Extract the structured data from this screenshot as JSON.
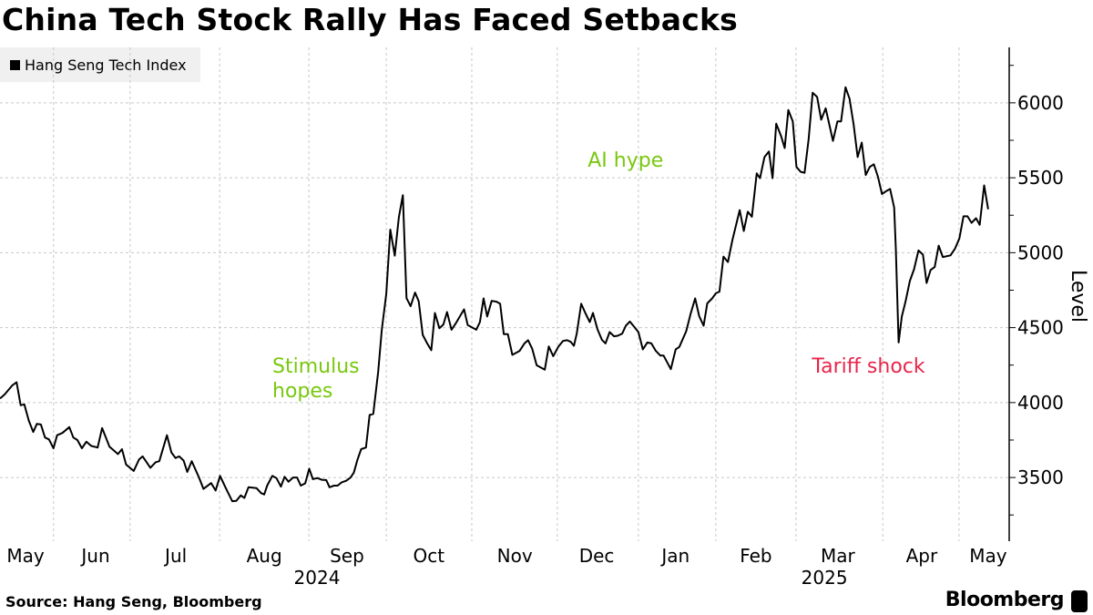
{
  "title": "China Tech Stock Rally Has Faced Setbacks",
  "source": "Source: Hang Seng, Bloomberg",
  "brand": "Bloomberg",
  "chart_data": {
    "type": "line",
    "title": "China Tech Stock Rally Has Faced Setbacks",
    "xlabel": "",
    "ylabel": "Level",
    "x_units": "trading days since start (May 2024)",
    "xlim": [
      0,
      249
    ],
    "ylim": [
      3075,
      6370
    ],
    "yticks": [
      3500,
      4000,
      4500,
      5000,
      5500,
      6000
    ],
    "ytick_labels": [
      "3500",
      "4000",
      "4500",
      "5000",
      "5500",
      "6000"
    ],
    "grid": true,
    "legend": {
      "placement": "top-left",
      "entries": [
        "Hang Seng Tech Index"
      ]
    },
    "month_boundaries": [
      13.2,
      32.1,
      54.2,
      76.2,
      95.3,
      116.4,
      137.5,
      157.5,
      176.6,
      196.4,
      217.8,
      236.6
    ],
    "month_labels": [
      {
        "label": "May",
        "at": 6.3
      },
      {
        "label": "Jun",
        "at": 23.6
      },
      {
        "label": "Jul",
        "at": 43.4
      },
      {
        "label": "Aug",
        "at": 65.2
      },
      {
        "label": "Sep",
        "at": 85.6
      },
      {
        "label": "Oct",
        "at": 105.8
      },
      {
        "label": "Nov",
        "at": 127.0
      },
      {
        "label": "Dec",
        "at": 147.2
      },
      {
        "label": "Jan",
        "at": 166.7
      },
      {
        "label": "Feb",
        "at": 186.5
      },
      {
        "label": "Mar",
        "at": 206.7
      },
      {
        "label": "Apr",
        "at": 227.4
      },
      {
        "label": "May",
        "at": 243.8
      }
    ],
    "year_labels": [
      {
        "label": "2024",
        "at": 78.2
      },
      {
        "label": "2025",
        "at": 203.4
      }
    ],
    "annotations": [
      {
        "text": [
          "Stimulus",
          "hopes"
        ],
        "color": "#79c80f",
        "x": 67.2,
        "y": 4150
      },
      {
        "text": [
          "AI hype"
        ],
        "color": "#79c80f",
        "x": 145,
        "y": 5525
      },
      {
        "text": [
          "Tariff shock"
        ],
        "color": "#e8254b",
        "x": 200.3,
        "y": 4150
      }
    ],
    "series": [
      {
        "name": "Hang Seng Tech Index",
        "color": "#000000",
        "points": [
          [
            0,
            4027
          ],
          [
            1.1,
            4053
          ],
          [
            3,
            4114
          ],
          [
            4.1,
            4136
          ],
          [
            5.1,
            3982
          ],
          [
            6,
            3988
          ],
          [
            7.1,
            3880
          ],
          [
            8.2,
            3804
          ],
          [
            9.1,
            3858
          ],
          [
            10.1,
            3854
          ],
          [
            11.1,
            3767
          ],
          [
            12.1,
            3754
          ],
          [
            13.2,
            3695
          ],
          [
            14.1,
            3782
          ],
          [
            15.4,
            3797
          ],
          [
            17.1,
            3836
          ],
          [
            18.1,
            3767
          ],
          [
            19.1,
            3750
          ],
          [
            20.2,
            3695
          ],
          [
            21.3,
            3739
          ],
          [
            22.5,
            3711
          ],
          [
            24.1,
            3700
          ],
          [
            25.2,
            3830
          ],
          [
            27,
            3706
          ],
          [
            29.1,
            3656
          ],
          [
            30.1,
            3689
          ],
          [
            31.1,
            3587
          ],
          [
            33,
            3544
          ],
          [
            34.3,
            3620
          ],
          [
            35.2,
            3641
          ],
          [
            37.1,
            3565
          ],
          [
            38.4,
            3602
          ],
          [
            39.3,
            3609
          ],
          [
            41.2,
            3782
          ],
          [
            42.3,
            3667
          ],
          [
            43.3,
            3630
          ],
          [
            44.2,
            3641
          ],
          [
            45.3,
            3613
          ],
          [
            46.2,
            3537
          ],
          [
            47.3,
            3609
          ],
          [
            49.1,
            3500
          ],
          [
            50.2,
            3424
          ],
          [
            52.1,
            3463
          ],
          [
            53.2,
            3413
          ],
          [
            54.3,
            3511
          ],
          [
            55.8,
            3424
          ],
          [
            57.3,
            3342
          ],
          [
            58.3,
            3344
          ],
          [
            59.4,
            3381
          ],
          [
            60.3,
            3364
          ],
          [
            61.3,
            3435
          ],
          [
            63.3,
            3429
          ],
          [
            64.4,
            3396
          ],
          [
            65.2,
            3387
          ],
          [
            65.9,
            3446
          ],
          [
            67.2,
            3511
          ],
          [
            68.2,
            3496
          ],
          [
            69.3,
            3439
          ],
          [
            70.2,
            3505
          ],
          [
            71.2,
            3472
          ],
          [
            72.3,
            3500
          ],
          [
            73.3,
            3500
          ],
          [
            74.2,
            3446
          ],
          [
            75.3,
            3461
          ],
          [
            76.3,
            3559
          ],
          [
            77.2,
            3489
          ],
          [
            78.3,
            3496
          ],
          [
            79.4,
            3485
          ],
          [
            80.5,
            3483
          ],
          [
            81.3,
            3435
          ],
          [
            82.4,
            3446
          ],
          [
            83.3,
            3446
          ],
          [
            84.3,
            3468
          ],
          [
            85.4,
            3478
          ],
          [
            86.5,
            3500
          ],
          [
            87.3,
            3533
          ],
          [
            88.2,
            3620
          ],
          [
            89.1,
            3689
          ],
          [
            90.3,
            3700
          ],
          [
            91.2,
            3917
          ],
          [
            92.1,
            3924
          ],
          [
            93.3,
            4205
          ],
          [
            94.2,
            4487
          ],
          [
            95.3,
            4726
          ],
          [
            96.3,
            5154
          ],
          [
            97.4,
            4980
          ],
          [
            98.4,
            5236
          ],
          [
            99.4,
            5384
          ],
          [
            100.3,
            4697
          ],
          [
            101.3,
            4643
          ],
          [
            102.4,
            4734
          ],
          [
            103.3,
            4676
          ],
          [
            104.3,
            4452
          ],
          [
            105.4,
            4395
          ],
          [
            106.4,
            4349
          ],
          [
            107.3,
            4598
          ],
          [
            108.4,
            4496
          ],
          [
            109.4,
            4521
          ],
          [
            110.3,
            4604
          ],
          [
            111.4,
            4486
          ],
          [
            112.4,
            4527
          ],
          [
            114.5,
            4622
          ],
          [
            115.4,
            4517
          ],
          [
            117.5,
            4486
          ],
          [
            118.4,
            4537
          ],
          [
            119.3,
            4695
          ],
          [
            120.2,
            4574
          ],
          [
            121.3,
            4679
          ],
          [
            122.5,
            4673
          ],
          [
            123.4,
            4659
          ],
          [
            124.3,
            4456
          ],
          [
            125.3,
            4456
          ],
          [
            126.4,
            4318
          ],
          [
            128.2,
            4345
          ],
          [
            129.4,
            4395
          ],
          [
            130.3,
            4416
          ],
          [
            131.3,
            4359
          ],
          [
            132.4,
            4249
          ],
          [
            134.4,
            4219
          ],
          [
            135.4,
            4375
          ],
          [
            136.5,
            4310
          ],
          [
            137.8,
            4375
          ],
          [
            138.9,
            4411
          ],
          [
            139.9,
            4416
          ],
          [
            140.8,
            4405
          ],
          [
            141.6,
            4379
          ],
          [
            142.3,
            4460
          ],
          [
            143.4,
            4659
          ],
          [
            144.4,
            4598
          ],
          [
            145.5,
            4537
          ],
          [
            146.3,
            4598
          ],
          [
            147.4,
            4490
          ],
          [
            148.5,
            4419
          ],
          [
            149.4,
            4395
          ],
          [
            150.4,
            4470
          ],
          [
            151.5,
            4442
          ],
          [
            152.4,
            4446
          ],
          [
            153.5,
            4460
          ],
          [
            154.4,
            4513
          ],
          [
            155.4,
            4541
          ],
          [
            156.4,
            4507
          ],
          [
            157.5,
            4470
          ],
          [
            158.6,
            4355
          ],
          [
            159.7,
            4401
          ],
          [
            160.7,
            4395
          ],
          [
            161.8,
            4345
          ],
          [
            162.9,
            4314
          ],
          [
            163.7,
            4314
          ],
          [
            165.5,
            4223
          ],
          [
            166.7,
            4355
          ],
          [
            167.6,
            4371
          ],
          [
            169.3,
            4476
          ],
          [
            170.4,
            4594
          ],
          [
            171.5,
            4695
          ],
          [
            172.5,
            4577
          ],
          [
            173.6,
            4513
          ],
          [
            174.5,
            4662
          ],
          [
            175.7,
            4695
          ],
          [
            176.6,
            4729
          ],
          [
            177.5,
            4740
          ],
          [
            178.5,
            4974
          ],
          [
            179.6,
            4938
          ],
          [
            180.7,
            5084
          ],
          [
            182.5,
            5284
          ],
          [
            183.5,
            5145
          ],
          [
            184.5,
            5273
          ],
          [
            185.5,
            5240
          ],
          [
            186.7,
            5529
          ],
          [
            187.5,
            5497
          ],
          [
            188.6,
            5638
          ],
          [
            189.7,
            5675
          ],
          [
            190.6,
            5497
          ],
          [
            191.5,
            5861
          ],
          [
            192.7,
            5779
          ],
          [
            193.6,
            5698
          ],
          [
            194.5,
            5952
          ],
          [
            195.6,
            5876
          ],
          [
            196.5,
            5573
          ],
          [
            197.5,
            5540
          ],
          [
            198.5,
            5533
          ],
          [
            199.5,
            5757
          ],
          [
            200.5,
            6067
          ],
          [
            201.6,
            6039
          ],
          [
            202.6,
            5887
          ],
          [
            203.7,
            5963
          ],
          [
            204.6,
            5855
          ],
          [
            205.5,
            5746
          ],
          [
            206.6,
            5876
          ],
          [
            207.5,
            5876
          ],
          [
            208.6,
            6104
          ],
          [
            209.6,
            6028
          ],
          [
            210.6,
            5855
          ],
          [
            211.6,
            5638
          ],
          [
            212.6,
            5735
          ],
          [
            213.6,
            5518
          ],
          [
            214.6,
            5573
          ],
          [
            215.6,
            5590
          ],
          [
            216.6,
            5507
          ],
          [
            217.6,
            5392
          ],
          [
            218.6,
            5410
          ],
          [
            219.6,
            5425
          ],
          [
            220.6,
            5301
          ],
          [
            221,
            5030
          ],
          [
            221.7,
            4401
          ],
          [
            222.5,
            4574
          ],
          [
            223.4,
            4672
          ],
          [
            224.5,
            4813
          ],
          [
            225.5,
            4889
          ],
          [
            226.6,
            5015
          ],
          [
            227.7,
            4987
          ],
          [
            228.6,
            4798
          ],
          [
            229.6,
            4885
          ],
          [
            230.6,
            4904
          ],
          [
            231.6,
            5047
          ],
          [
            232.6,
            4971
          ],
          [
            234.5,
            4982
          ],
          [
            235.6,
            5026
          ],
          [
            236.7,
            5095
          ],
          [
            237.7,
            5243
          ],
          [
            238.7,
            5243
          ],
          [
            239.7,
            5199
          ],
          [
            240.8,
            5230
          ],
          [
            241.7,
            5186
          ],
          [
            242.8,
            5449
          ],
          [
            243.8,
            5290
          ]
        ]
      }
    ]
  }
}
